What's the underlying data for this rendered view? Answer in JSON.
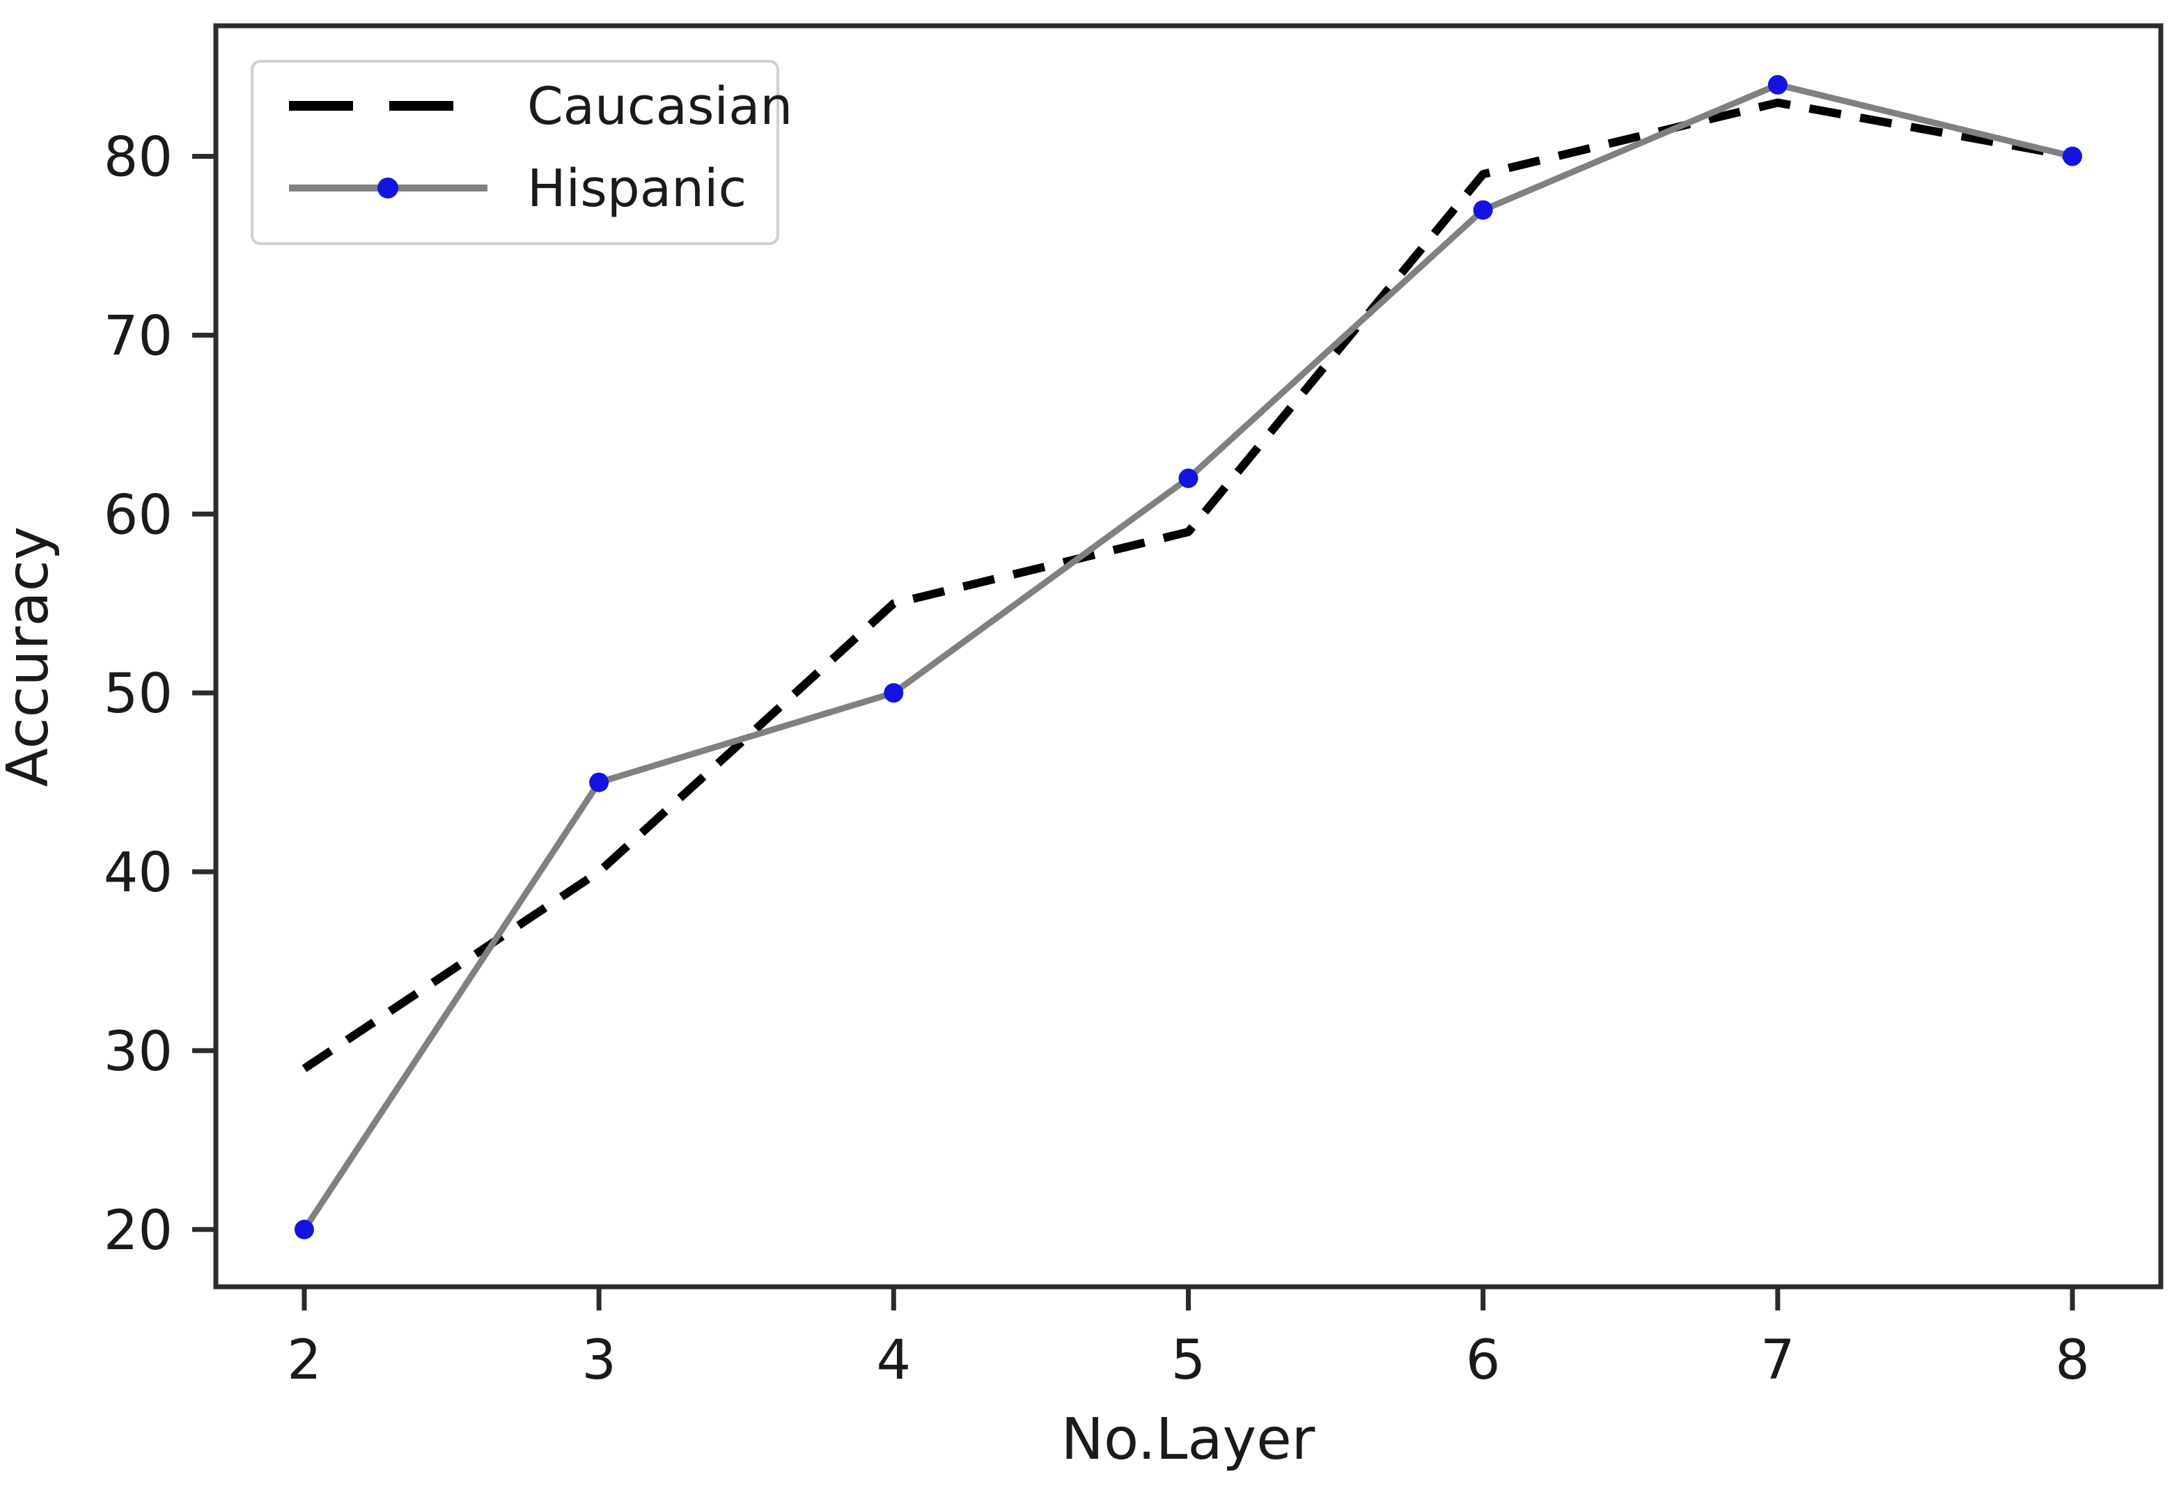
{
  "chart_data": {
    "type": "line",
    "x": [
      2,
      3,
      4,
      5,
      6,
      7,
      8
    ],
    "series": [
      {
        "name": "Caucasian",
        "values": [
          29,
          40,
          55,
          59,
          79,
          83,
          80
        ],
        "color": "#000000",
        "style": "dashed",
        "marker": null
      },
      {
        "name": "Hispanic",
        "values": [
          20,
          45,
          50,
          62,
          77,
          84,
          80
        ],
        "color": "#808080",
        "style": "solid",
        "marker": {
          "shape": "circle",
          "color": "#1414e0"
        }
      }
    ],
    "title": "",
    "xlabel": "No.Layer",
    "ylabel": "Accuracy",
    "xticks": [
      2,
      3,
      4,
      5,
      6,
      7,
      8
    ],
    "yticks": [
      20,
      30,
      40,
      50,
      60,
      70,
      80
    ],
    "xlim": [
      1.7,
      8.3
    ],
    "ylim": [
      16.8,
      87.3
    ],
    "grid": false,
    "legend": {
      "position": "upper-left",
      "entries": [
        "Caucasian",
        "Hispanic"
      ]
    },
    "axis_color": "#2b2b2b",
    "background_color": "#ffffff"
  }
}
